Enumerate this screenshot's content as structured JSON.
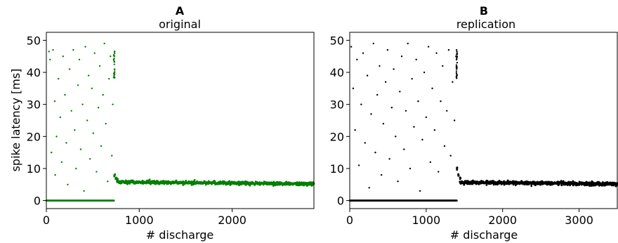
{
  "chart_data": [
    {
      "type": "scatter",
      "panel_label": "A",
      "title": "original",
      "xlabel": "# discharge",
      "ylabel": "spike latency [ms]",
      "xlim": [
        0,
        2880
      ],
      "ylim": [
        -2.5,
        52.5
      ],
      "xticks": [
        0,
        1000,
        2000
      ],
      "xtick_labels": [
        "0",
        "1000",
        "2000"
      ],
      "yticks": [
        0,
        10,
        20,
        30,
        40,
        50
      ],
      "ytick_labels": [
        "0",
        "10",
        "20",
        "30",
        "40",
        "50"
      ],
      "color": "#008000",
      "grid": false,
      "series": [
        {
          "phase": "failures / irregular (latency ~0 or scattered 0-50 ms)",
          "x_range": [
            0,
            730
          ],
          "points": [
            [
              28,
              46.5
            ],
            [
              40,
              44
            ],
            [
              55,
              15
            ],
            [
              72,
              47
            ],
            [
              90,
              31
            ],
            [
              110,
              20
            ],
            [
              95,
              8
            ],
            [
              130,
              38
            ],
            [
              150,
              26
            ],
            [
              165,
              12
            ],
            [
              180,
              45
            ],
            [
              200,
              33
            ],
            [
              215,
              18
            ],
            [
              230,
              5
            ],
            [
              250,
              41
            ],
            [
              270,
              28
            ],
            [
              290,
              47
            ],
            [
              305,
              22
            ],
            [
              320,
              10
            ],
            [
              340,
              36
            ],
            [
              355,
              44
            ],
            [
              370,
              16
            ],
            [
              390,
              30
            ],
            [
              405,
              3
            ],
            [
              420,
              48
            ],
            [
              440,
              25
            ],
            [
              455,
              39
            ],
            [
              470,
              13
            ],
            [
              490,
              35
            ],
            [
              505,
              21
            ],
            [
              520,
              46
            ],
            [
              540,
              9
            ],
            [
              560,
              29
            ],
            [
              575,
              42
            ],
            [
              590,
              17
            ],
            [
              610,
              33
            ],
            [
              625,
              49
            ],
            [
              640,
              24
            ],
            [
              660,
              6
            ],
            [
              675,
              38
            ],
            [
              690,
              45
            ],
            [
              705,
              14
            ],
            [
              715,
              30
            ],
            [
              725,
              44
            ]
          ]
        },
        {
          "phase": "latency decay after first spike",
          "x_range": [
            730,
            760
          ],
          "values": [
            8,
            7,
            6.5
          ]
        },
        {
          "phase": "steady state",
          "x_range": [
            760,
            2880
          ],
          "mean_latency": 5.8,
          "end_latency": 5.2
        }
      ]
    },
    {
      "type": "scatter",
      "panel_label": "B",
      "title": "replication",
      "xlabel": "# discharge",
      "ylabel": "",
      "xlim": [
        0,
        3500
      ],
      "ylim": [
        -2.5,
        52.5
      ],
      "xticks": [
        0,
        1000,
        2000,
        3000
      ],
      "xtick_labels": [
        "0",
        "1000",
        "2000",
        "3000"
      ],
      "yticks": [
        0,
        10,
        20,
        30,
        40,
        50
      ],
      "ytick_labels": [
        "0",
        "10",
        "20",
        "30",
        "40",
        "50"
      ],
      "color": "#000000",
      "grid": false,
      "series": [
        {
          "phase": "failures / irregular (latency ~0 or scattered 0-50 ms)",
          "x_range": [
            0,
            1400
          ],
          "points": [
            [
              20,
              48
            ],
            [
              45,
              35
            ],
            [
              70,
              22
            ],
            [
              95,
              44
            ],
            [
              120,
              11
            ],
            [
              150,
              30
            ],
            [
              175,
              46
            ],
            [
              200,
              18
            ],
            [
              230,
              39
            ],
            [
              255,
              4
            ],
            [
              280,
              27
            ],
            [
              310,
              49
            ],
            [
              335,
              15
            ],
            [
              360,
              33
            ],
            [
              390,
              42
            ],
            [
              415,
              8
            ],
            [
              440,
              24
            ],
            [
              470,
              37
            ],
            [
              495,
              47
            ],
            [
              520,
              13
            ],
            [
              550,
              29
            ],
            [
              575,
              41
            ],
            [
              600,
              20
            ],
            [
              630,
              6
            ],
            [
              655,
              34
            ],
            [
              680,
              45
            ],
            [
              710,
              16
            ],
            [
              735,
              28
            ],
            [
              760,
              49
            ],
            [
              790,
              10
            ],
            [
              815,
              38
            ],
            [
              840,
              23
            ],
            [
              870,
              44
            ],
            [
              895,
              31
            ],
            [
              920,
              3
            ],
            [
              950,
              19
            ],
            [
              975,
              40
            ],
            [
              1000,
              26
            ],
            [
              1030,
              48
            ],
            [
              1055,
              12
            ],
            [
              1080,
              35
            ],
            [
              1110,
              22
            ],
            [
              1135,
              46
            ],
            [
              1160,
              9
            ],
            [
              1190,
              31
            ],
            [
              1215,
              42
            ],
            [
              1240,
              17
            ],
            [
              1270,
              28
            ],
            [
              1295,
              47
            ],
            [
              1320,
              14
            ],
            [
              1345,
              37
            ],
            [
              1370,
              25
            ],
            [
              1390,
              45
            ]
          ]
        },
        {
          "phase": "latency decay after first spike",
          "x_range": [
            1400,
            1440
          ],
          "values": [
            10,
            8,
            7
          ]
        },
        {
          "phase": "steady state",
          "x_range": [
            1440,
            3500
          ],
          "mean_latency": 5.7,
          "end_latency": 5.2
        }
      ]
    }
  ]
}
